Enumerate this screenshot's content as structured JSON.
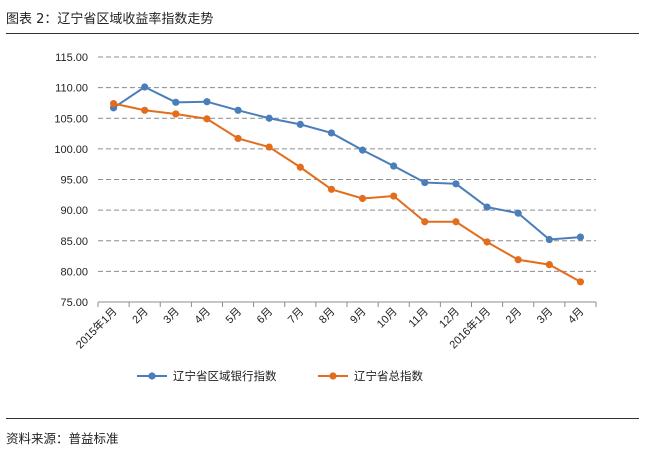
{
  "header": {
    "title": "图表 2：辽宁省区域收益率指数走势"
  },
  "footer": {
    "source": "资料来源：普益标准"
  },
  "chart_data": {
    "type": "line",
    "title": "",
    "xlabel": "",
    "ylabel": "",
    "categories": [
      "2015年1月",
      "2月",
      "3月",
      "4月",
      "5月",
      "6月",
      "7月",
      "8月",
      "9月",
      "10月",
      "11月",
      "12月",
      "2016年1月",
      "2月",
      "3月",
      "4月"
    ],
    "ylim": [
      75,
      115
    ],
    "yticks": [
      "75.00",
      "80.00",
      "85.00",
      "90.00",
      "95.00",
      "100.00",
      "105.00",
      "110.00",
      "115.00"
    ],
    "grid": true,
    "legend_position": "bottom",
    "series": [
      {
        "name": "辽宁省区域银行指数",
        "color": "#4a7ebb",
        "values": [
          106.7,
          110.1,
          107.6,
          107.7,
          106.3,
          105.0,
          104.0,
          102.6,
          99.8,
          97.2,
          94.5,
          94.3,
          90.5,
          89.5,
          85.2,
          85.6
        ]
      },
      {
        "name": "辽宁省总指数",
        "color": "#e46c1d",
        "values": [
          107.4,
          106.3,
          105.7,
          104.9,
          101.7,
          100.3,
          97.0,
          93.4,
          91.9,
          92.3,
          88.1,
          88.1,
          84.8,
          81.9,
          81.1,
          78.3
        ]
      }
    ]
  }
}
